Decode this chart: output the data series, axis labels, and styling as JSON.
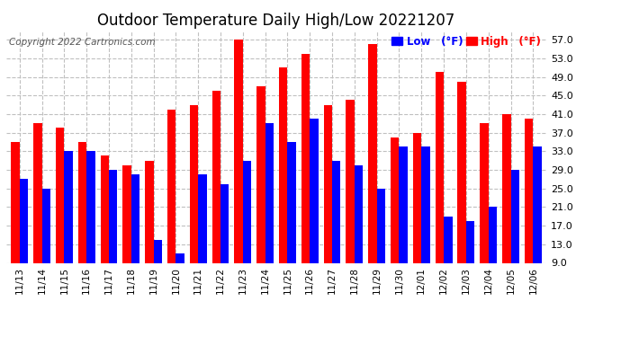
{
  "title": "Outdoor Temperature Daily High/Low 20221207",
  "copyright": "Copyright 2022 Cartronics.com",
  "categories": [
    "11/13",
    "11/14",
    "11/15",
    "11/16",
    "11/17",
    "11/18",
    "11/19",
    "11/20",
    "11/21",
    "11/22",
    "11/23",
    "11/24",
    "11/25",
    "11/26",
    "11/27",
    "11/28",
    "11/29",
    "11/30",
    "12/01",
    "12/02",
    "12/03",
    "12/04",
    "12/05",
    "12/06"
  ],
  "high_values": [
    35,
    39,
    38,
    35,
    32,
    30,
    31,
    42,
    43,
    46,
    57,
    47,
    51,
    54,
    43,
    44,
    56,
    36,
    37,
    50,
    48,
    39,
    41,
    40
  ],
  "low_values": [
    27,
    25,
    33,
    33,
    29,
    28,
    14,
    11,
    28,
    26,
    31,
    39,
    35,
    40,
    31,
    30,
    25,
    34,
    34,
    19,
    18,
    21,
    29,
    34
  ],
  "high_color": "#ff0000",
  "low_color": "#0000ff",
  "bg_color": "#ffffff",
  "grid_color": "#c0c0c0",
  "yticks": [
    9.0,
    13.0,
    17.0,
    21.0,
    25.0,
    29.0,
    33.0,
    37.0,
    41.0,
    45.0,
    49.0,
    53.0,
    57.0
  ],
  "ymin": 9.0,
  "ymax": 59.0,
  "bar_bottom": 9.0,
  "title_fontsize": 12,
  "legend_low_label": "Low (°F)",
  "legend_high_label": "High (°F)"
}
